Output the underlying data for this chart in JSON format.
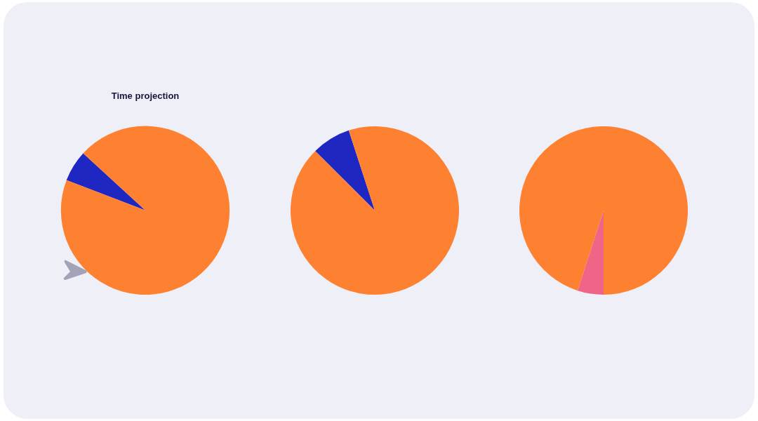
{
  "chart_data": [
    {
      "type": "pie",
      "title": "Time projection",
      "categories": [
        null,
        null
      ],
      "values": [
        6,
        94
      ],
      "colors": [
        "#1f27c2",
        "#fd8130"
      ]
    },
    {
      "type": "pie",
      "categories": [
        null,
        null
      ],
      "values": [
        7.5,
        92.5
      ],
      "colors": [
        "#1f27c2",
        "#fd8130"
      ]
    },
    {
      "type": "pie",
      "categories": [
        null,
        null
      ],
      "values": [
        5,
        95
      ],
      "colors": [
        "#f06487",
        "#fd8130"
      ]
    }
  ]
}
